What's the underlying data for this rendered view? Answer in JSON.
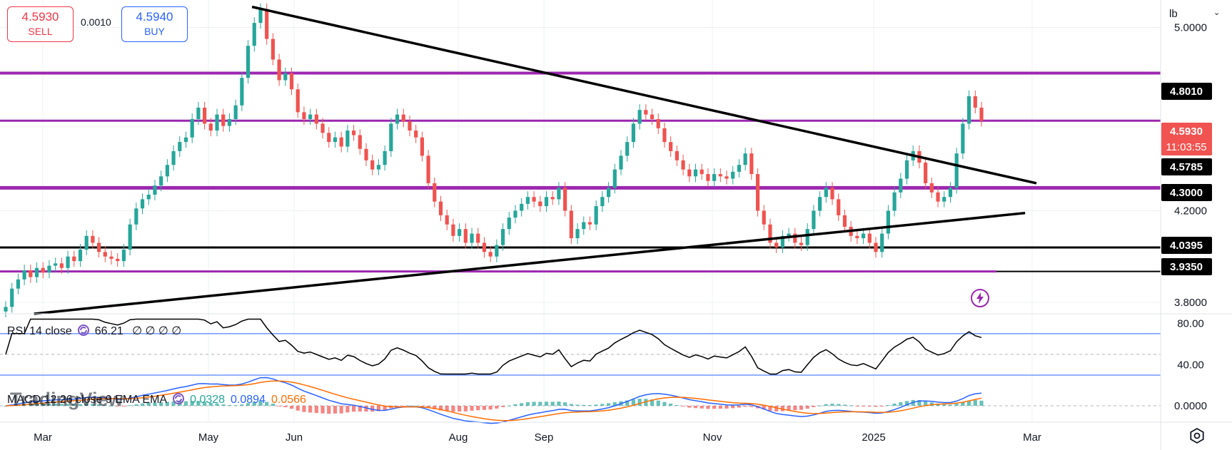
{
  "trade": {
    "sell_price": "4.5930",
    "sell_label": "SELL",
    "spread": "0.0010",
    "buy_price": "4.5940",
    "buy_label": "BUY"
  },
  "toolbar": {
    "unit": "lb"
  },
  "watermark": "TradingView",
  "colors": {
    "up": "#26a69a",
    "down": "#ef5350",
    "level": "#9c27b0",
    "trend": "#000000",
    "rsi_line": "#000000",
    "rsi_band": "#2962ff",
    "macd_line": "#2962ff",
    "signal_line": "#ff6d00",
    "last_price_bg": "#f05350"
  },
  "price_labels": [
    {
      "text": "4.8010",
      "style": "black"
    },
    {
      "text": "4.5930",
      "sub": "11:03:55",
      "style": "red"
    },
    {
      "text": "4.5785",
      "style": "black"
    },
    {
      "text": "4.3000",
      "style": "black"
    },
    {
      "text": "4.0395",
      "style": "black"
    },
    {
      "text": "3.9350",
      "style": "black"
    }
  ],
  "rsi": {
    "label": "RSI 14 close",
    "value": "66.21",
    "extra": "∅ ∅ ∅ ∅",
    "ticks": [
      "80.00",
      "40.00"
    ]
  },
  "macd": {
    "label": "MACD 12 26 close 9 EMA EMA",
    "values": [
      "0.0328",
      "0.0894",
      "0.0566"
    ]
  },
  "chart_data": {
    "type": "candlestick",
    "x_ticks": [
      "Mar",
      "May",
      "Jun",
      "Aug",
      "Sep",
      "Nov",
      "2025",
      "Mar"
    ],
    "y_ticks": [
      "5.0000",
      "4.2000",
      "3.8000"
    ],
    "y_range": [
      3.75,
      5.12
    ],
    "horizontal_levels": [
      4.801,
      4.593,
      4.3,
      4.0395,
      3.935
    ],
    "trendlines": [
      {
        "name": "upper",
        "from": {
          "date": "2024-05-21",
          "value": 5.09
        },
        "to": {
          "date": "2025-02-22",
          "value": 4.32
        }
      },
      {
        "name": "lower",
        "from": {
          "date": "2024-03-05",
          "value": 3.75
        },
        "to": {
          "date": "2025-02-18",
          "value": 4.19
        }
      }
    ],
    "last_price": 4.593,
    "rsi_last": 66.21,
    "macd_last": {
      "macd": 0.0894,
      "signal": 0.0566,
      "hist": 0.0328
    },
    "candles_close": [
      3.78,
      3.86,
      3.9,
      3.94,
      3.91,
      3.95,
      3.93,
      3.96,
      3.97,
      3.95,
      4.0,
      3.98,
      4.03,
      4.09,
      4.06,
      4.02,
      4.0,
      3.99,
      3.98,
      4.03,
      4.14,
      4.21,
      4.25,
      4.27,
      4.31,
      4.35,
      4.4,
      4.46,
      4.5,
      4.52,
      4.6,
      4.65,
      4.58,
      4.55,
      4.62,
      4.57,
      4.6,
      4.66,
      4.78,
      4.92,
      5.02,
      5.08,
      4.95,
      4.86,
      4.77,
      4.8,
      4.73,
      4.63,
      4.6,
      4.62,
      4.58,
      4.54,
      4.5,
      4.52,
      4.48,
      4.55,
      4.53,
      4.47,
      4.42,
      4.38,
      4.4,
      4.46,
      4.58,
      4.62,
      4.59,
      4.55,
      4.52,
      4.44,
      4.32,
      4.24,
      4.18,
      4.14,
      4.09,
      4.12,
      4.06,
      4.1,
      4.06,
      4.02,
      4.0,
      4.05,
      4.12,
      4.17,
      4.2,
      4.23,
      4.26,
      4.24,
      4.22,
      4.26,
      4.25,
      4.3,
      4.2,
      4.08,
      4.12,
      4.15,
      4.14,
      4.22,
      4.26,
      4.3,
      4.38,
      4.44,
      4.5,
      4.58,
      4.64,
      4.62,
      4.6,
      4.56,
      4.5,
      4.46,
      4.42,
      4.38,
      4.35,
      4.38,
      4.36,
      4.33,
      4.36,
      4.35,
      4.34,
      4.37,
      4.4,
      4.45,
      4.36,
      4.2,
      4.14,
      4.06,
      4.04,
      4.09,
      4.1,
      4.06,
      4.05,
      4.12,
      4.2,
      4.26,
      4.3,
      4.25,
      4.18,
      4.13,
      4.09,
      4.08,
      4.1,
      4.06,
      4.02,
      4.1,
      4.2,
      4.28,
      4.34,
      4.42,
      4.46,
      4.41,
      4.32,
      4.28,
      4.24,
      4.26,
      4.3,
      4.45,
      4.58,
      4.7,
      4.65,
      4.593
    ]
  }
}
